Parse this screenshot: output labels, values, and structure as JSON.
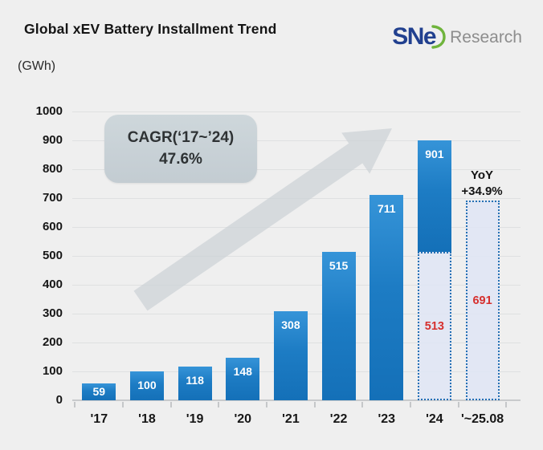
{
  "header": {
    "title": "Global xEV Battery Installment Trend",
    "unit_label": "(GWh)",
    "logo": {
      "text": "SNe",
      "suffix": "Research"
    }
  },
  "chart_data": {
    "type": "bar",
    "title": "Global xEV Battery Installment Trend",
    "ylabel": "(GWh)",
    "xlabel": "",
    "ylim": [
      0,
      1000
    ],
    "ytick_step": 100,
    "grid": true,
    "legend": "none",
    "categories": [
      "'17",
      "'18",
      "'19",
      "'20",
      "'21",
      "'22",
      "'23",
      "'24",
      "'~25.08"
    ],
    "bars": [
      {
        "category": "'17",
        "value": 59,
        "style": "solid"
      },
      {
        "category": "'18",
        "value": 100,
        "style": "solid"
      },
      {
        "category": "'19",
        "value": 118,
        "style": "solid"
      },
      {
        "category": "'20",
        "value": 148,
        "style": "solid"
      },
      {
        "category": "'21",
        "value": 308,
        "style": "solid"
      },
      {
        "category": "'22",
        "value": 515,
        "style": "solid"
      },
      {
        "category": "'23",
        "value": 711,
        "style": "solid"
      },
      {
        "category": "'24",
        "value": 901,
        "style": "split",
        "split_value": 513
      },
      {
        "category": "'~25.08",
        "value": 691,
        "style": "dotted"
      }
    ],
    "annotations": {
      "cagr": {
        "lines": [
          "CAGR(‘17~’24)",
          "47.6%"
        ]
      },
      "yoy": {
        "lines": [
          "YoY",
          "+34.9%"
        ]
      },
      "growth_arrow": "gray up-right arrow"
    },
    "colors": {
      "bar_blue": "#1b7ac2",
      "dotted_fill": "#dfe5f4",
      "dotted_border": "#2470b4",
      "highlight_label_red": "#d6302e",
      "background": "#efefef",
      "gridline": "#dfe0e1",
      "cagr_box_fill": "#c8d1d7",
      "arrow_gray": "#cfd4d8",
      "logo_blue": "#21408f",
      "logo_green": "#6fb43c",
      "logo_gray": "#8d8d8d"
    }
  }
}
